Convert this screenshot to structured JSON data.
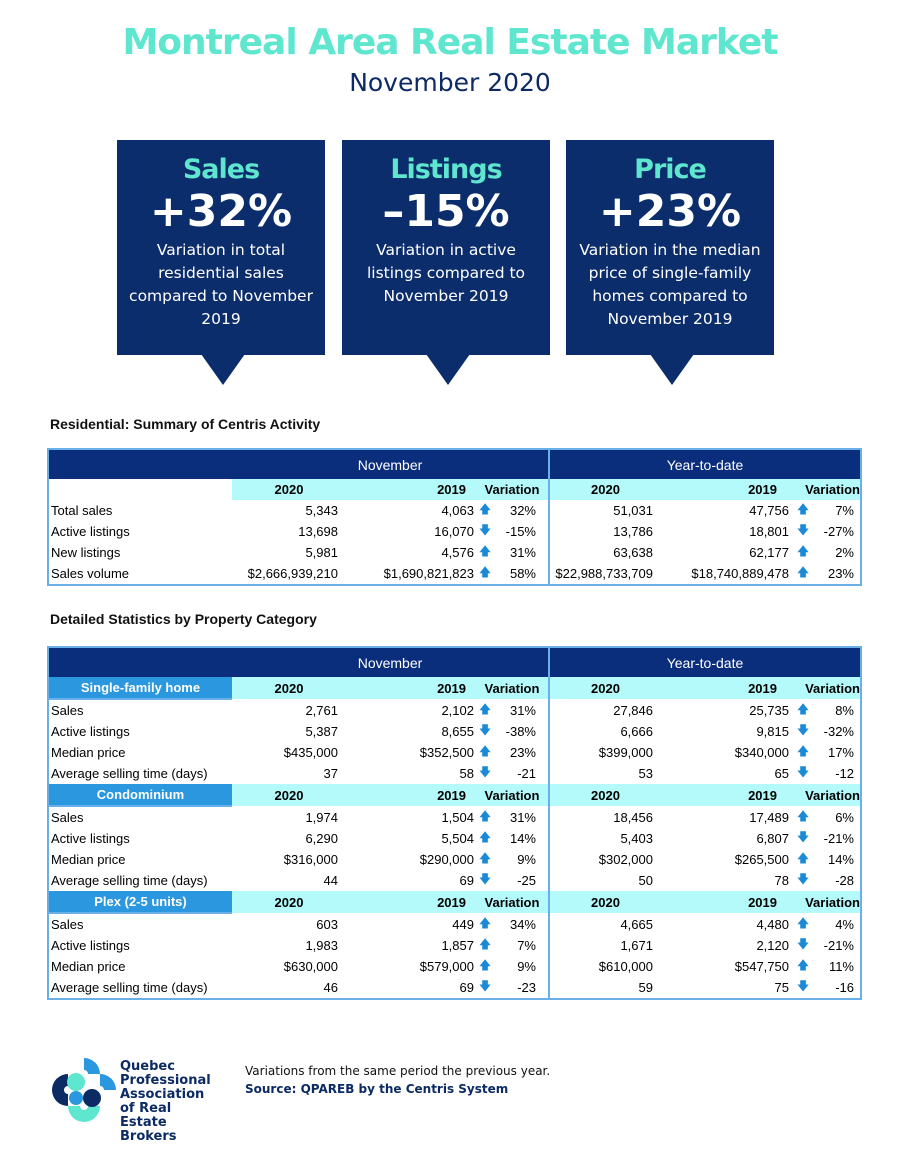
{
  "header": {
    "title": "Montreal Area Real Estate Market",
    "subtitle": "November 2020"
  },
  "callouts": [
    {
      "heading": "Sales",
      "value": "+32%",
      "description": "Variation in total residential sales compared to November 2019"
    },
    {
      "heading": "Listings",
      "value": "–15%",
      "description": "Variation in active listings compared to November 2019"
    },
    {
      "heading": "Price",
      "value": "+23%",
      "description": "Variation in the median price of single-family homes compared to November 2019"
    }
  ],
  "colors": {
    "accent": "#5fe6cf",
    "navy": "#0a2e7c",
    "cyan": "#b4fafb",
    "category_blue": "#2b97de",
    "arrow": "#1a8ad8"
  },
  "summary": {
    "title": "Residential: Summary of Centris Activity",
    "groups": [
      "November",
      "Year-to-date"
    ],
    "columns": [
      "2020",
      "2019",
      "Variation",
      "2020",
      "2019",
      "Variation"
    ],
    "rows": [
      {
        "label": "Total sales",
        "nov2020": "5,343",
        "nov2019": "4,063",
        "novDir": "up",
        "novVar": "32%",
        "ytd2020": "51,031",
        "ytd2019": "47,756",
        "ytdDir": "up",
        "ytdVar": "7%"
      },
      {
        "label": "Active listings",
        "nov2020": "13,698",
        "nov2019": "16,070",
        "novDir": "down",
        "novVar": "-15%",
        "ytd2020": "13,786",
        "ytd2019": "18,801",
        "ytdDir": "down",
        "ytdVar": "-27%"
      },
      {
        "label": "New listings",
        "nov2020": "5,981",
        "nov2019": "4,576",
        "novDir": "up",
        "novVar": "31%",
        "ytd2020": "63,638",
        "ytd2019": "62,177",
        "ytdDir": "up",
        "ytdVar": "2%"
      },
      {
        "label": "Sales volume",
        "nov2020": "$2,666,939,210",
        "nov2019": "$1,690,821,823",
        "novDir": "up",
        "novVar": "58%",
        "ytd2020": "$22,988,733,709",
        "ytd2019": "$18,740,889,478",
        "ytdDir": "up",
        "ytdVar": "23%"
      }
    ]
  },
  "detailed": {
    "title": "Detailed Statistics by Property Category",
    "groups": [
      "November",
      "Year-to-date"
    ],
    "columns": [
      "2020",
      "2019",
      "Variation",
      "2020",
      "2019",
      "Variation"
    ],
    "categories": [
      {
        "name": "Single-family home",
        "rows": [
          {
            "label": "Sales",
            "nov2020": "2,761",
            "nov2019": "2,102",
            "novDir": "up",
            "novVar": "31%",
            "ytd2020": "27,846",
            "ytd2019": "25,735",
            "ytdDir": "up",
            "ytdVar": "8%"
          },
          {
            "label": "Active listings",
            "nov2020": "5,387",
            "nov2019": "8,655",
            "novDir": "down",
            "novVar": "-38%",
            "ytd2020": "6,666",
            "ytd2019": "9,815",
            "ytdDir": "down",
            "ytdVar": "-32%"
          },
          {
            "label": "Median price",
            "nov2020": "$435,000",
            "nov2019": "$352,500",
            "novDir": "up",
            "novVar": "23%",
            "ytd2020": "$399,000",
            "ytd2019": "$340,000",
            "ytdDir": "up",
            "ytdVar": "17%"
          },
          {
            "label": "Average selling time (days)",
            "nov2020": "37",
            "nov2019": "58",
            "novDir": "down",
            "novVar": "-21",
            "ytd2020": "53",
            "ytd2019": "65",
            "ytdDir": "down",
            "ytdVar": "-12"
          }
        ]
      },
      {
        "name": "Condominium",
        "rows": [
          {
            "label": "Sales",
            "nov2020": "1,974",
            "nov2019": "1,504",
            "novDir": "up",
            "novVar": "31%",
            "ytd2020": "18,456",
            "ytd2019": "17,489",
            "ytdDir": "up",
            "ytdVar": "6%"
          },
          {
            "label": "Active listings",
            "nov2020": "6,290",
            "nov2019": "5,504",
            "novDir": "up",
            "novVar": "14%",
            "ytd2020": "5,403",
            "ytd2019": "6,807",
            "ytdDir": "down",
            "ytdVar": "-21%"
          },
          {
            "label": "Median price",
            "nov2020": "$316,000",
            "nov2019": "$290,000",
            "novDir": "up",
            "novVar": "9%",
            "ytd2020": "$302,000",
            "ytd2019": "$265,500",
            "ytdDir": "up",
            "ytdVar": "14%"
          },
          {
            "label": "Average selling time (days)",
            "nov2020": "44",
            "nov2019": "69",
            "novDir": "down",
            "novVar": "-25",
            "ytd2020": "50",
            "ytd2019": "78",
            "ytdDir": "down",
            "ytdVar": "-28"
          }
        ]
      },
      {
        "name": "Plex (2-5 units)",
        "rows": [
          {
            "label": "Sales",
            "nov2020": "603",
            "nov2019": "449",
            "novDir": "up",
            "novVar": "34%",
            "ytd2020": "4,665",
            "ytd2019": "4,480",
            "ytdDir": "up",
            "ytdVar": "4%"
          },
          {
            "label": "Active listings",
            "nov2020": "1,983",
            "nov2019": "1,857",
            "novDir": "up",
            "novVar": "7%",
            "ytd2020": "1,671",
            "ytd2019": "2,120",
            "ytdDir": "down",
            "ytdVar": "-21%"
          },
          {
            "label": "Median price",
            "nov2020": "$630,000",
            "nov2019": "$579,000",
            "novDir": "up",
            "novVar": "9%",
            "ytd2020": "$610,000",
            "ytd2019": "$547,750",
            "ytdDir": "up",
            "ytdVar": "11%"
          },
          {
            "label": "Average selling time (days)",
            "nov2020": "46",
            "nov2019": "69",
            "novDir": "down",
            "novVar": "-23",
            "ytd2020": "59",
            "ytd2019": "75",
            "ytdDir": "down",
            "ytdVar": "-16"
          }
        ]
      }
    ]
  },
  "footer": {
    "logo_text": "Quebec Professional Association of Real Estate Brokers",
    "note": "Variations from the same period the previous year.",
    "source": "Source: QPAREB by the Centris System"
  }
}
